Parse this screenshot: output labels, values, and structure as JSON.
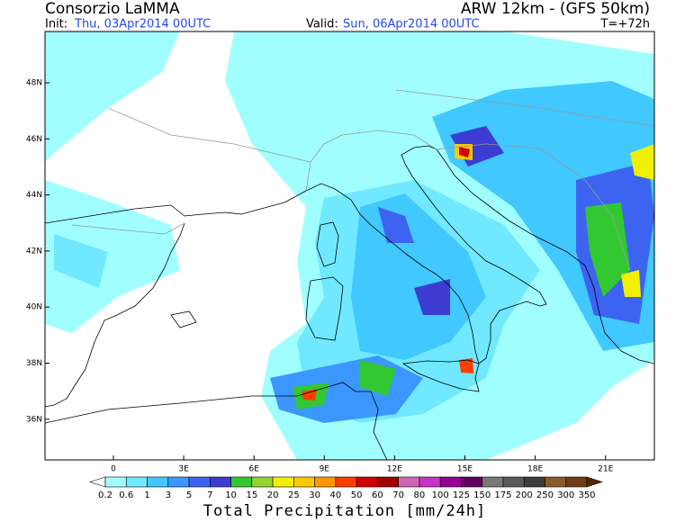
{
  "header": {
    "title": "Consorzio LaMMA",
    "model": "ARW 12km - (GFS 50km)",
    "init_label": "Init:",
    "init": "Thu, 03Apr2014 00UTC",
    "valid_label": "Valid:",
    "valid": "Sun, 06Apr2014 00UTC",
    "lead": "T=+72h"
  },
  "map": {
    "lat_labels": [
      "48N",
      "46N",
      "44N",
      "42N",
      "40N",
      "38N",
      "36N"
    ],
    "lon_labels": [
      "0",
      "3E",
      "6E",
      "9E",
      "12E",
      "15E",
      "18E",
      "21E"
    ]
  },
  "colorbar": {
    "labels": [
      0.2,
      0.6,
      1,
      3,
      5,
      7,
      10,
      15,
      20,
      25,
      30,
      40,
      50,
      60,
      70,
      80,
      100,
      125,
      150,
      175,
      200,
      250,
      300,
      350
    ],
    "colors": [
      "#ffffff",
      "#a0fffe",
      "#70e8ff",
      "#40c8ff",
      "#3c96ff",
      "#3c64f0",
      "#3c3cd2",
      "#32c832",
      "#96d232",
      "#f0f000",
      "#ffc800",
      "#ff9600",
      "#ff3c00",
      "#d20000",
      "#a00000",
      "#d264b4",
      "#c832c8",
      "#960096",
      "#640064",
      "#787878",
      "#5a5a5a",
      "#3c3c3c",
      "#8c5a28",
      "#6e3c14",
      "#502800"
    ],
    "title": "Total Precipitation [mm/24h]"
  }
}
